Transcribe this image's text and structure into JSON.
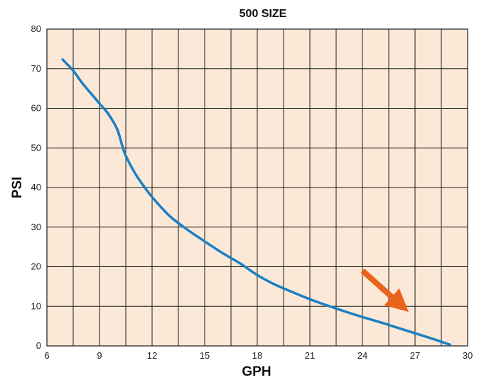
{
  "chart_data": {
    "type": "line",
    "title": "500 SIZE",
    "xlabel": "GPH",
    "ylabel": "PSI",
    "xlim": [
      6,
      30
    ],
    "ylim": [
      0,
      80
    ],
    "x_ticks": [
      6,
      9,
      12,
      15,
      18,
      21,
      24,
      27,
      30
    ],
    "y_ticks": [
      0,
      10,
      20,
      30,
      40,
      50,
      60,
      70,
      80
    ],
    "x_gridline_step": 1.5,
    "y_gridline_step": 10,
    "grid": true,
    "series": [
      {
        "points": [
          [
            6.9,
            72.3
          ],
          [
            7.5,
            69.5
          ],
          [
            8.0,
            66.5
          ],
          [
            8.5,
            63.8
          ],
          [
            9.0,
            61.2
          ],
          [
            9.5,
            58.6
          ],
          [
            10.0,
            54.8
          ],
          [
            10.3,
            50.5
          ],
          [
            10.5,
            48.0
          ],
          [
            11.0,
            43.8
          ],
          [
            11.5,
            40.5
          ],
          [
            12.0,
            37.6
          ],
          [
            13.0,
            32.8
          ],
          [
            14.0,
            29.4
          ],
          [
            15.0,
            26.4
          ],
          [
            16.0,
            23.5
          ],
          [
            17.0,
            20.9
          ],
          [
            18.0,
            17.9
          ],
          [
            19.0,
            15.5
          ],
          [
            20.0,
            13.6
          ],
          [
            21.0,
            11.8
          ],
          [
            22.0,
            10.2
          ],
          [
            23.0,
            8.7
          ],
          [
            24.0,
            7.3
          ],
          [
            25.0,
            6.0
          ],
          [
            26.0,
            4.6
          ],
          [
            27.0,
            3.2
          ],
          [
            28.0,
            1.8
          ],
          [
            29.0,
            0.3
          ]
        ],
        "color": "#1b7fc4"
      }
    ],
    "annotation": {
      "type": "arrow",
      "from": [
        24.0,
        19.0
      ],
      "to": [
        26.2,
        10.0
      ],
      "color": "#e8631c"
    },
    "colors": {
      "plot_background": "#fce8d6",
      "gridline": "#1a1a1a"
    }
  }
}
